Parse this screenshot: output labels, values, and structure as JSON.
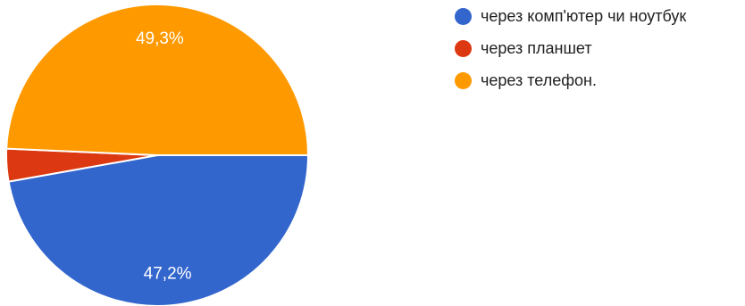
{
  "chart_data": {
    "type": "pie",
    "title": "",
    "slices": [
      {
        "label": "через комп'ютер чи ноутбук",
        "value": 47.2,
        "display": "47,2%",
        "color": "#3366cc",
        "show_label": true
      },
      {
        "label": "через планшет",
        "value": 3.5,
        "display": "",
        "color": "#dc3912",
        "show_label": false
      },
      {
        "label": "через телефон.",
        "value": 49.3,
        "display": "49,3%",
        "color": "#ff9900",
        "show_label": true
      }
    ],
    "legend": {
      "placement": "right",
      "items": [
        {
          "label": "через комп'ютер чи ноутбук",
          "color": "#3366cc"
        },
        {
          "label": "через планшет",
          "color": "#dc3912"
        },
        {
          "label": "через телефон.",
          "color": "#ff9900"
        }
      ]
    }
  }
}
